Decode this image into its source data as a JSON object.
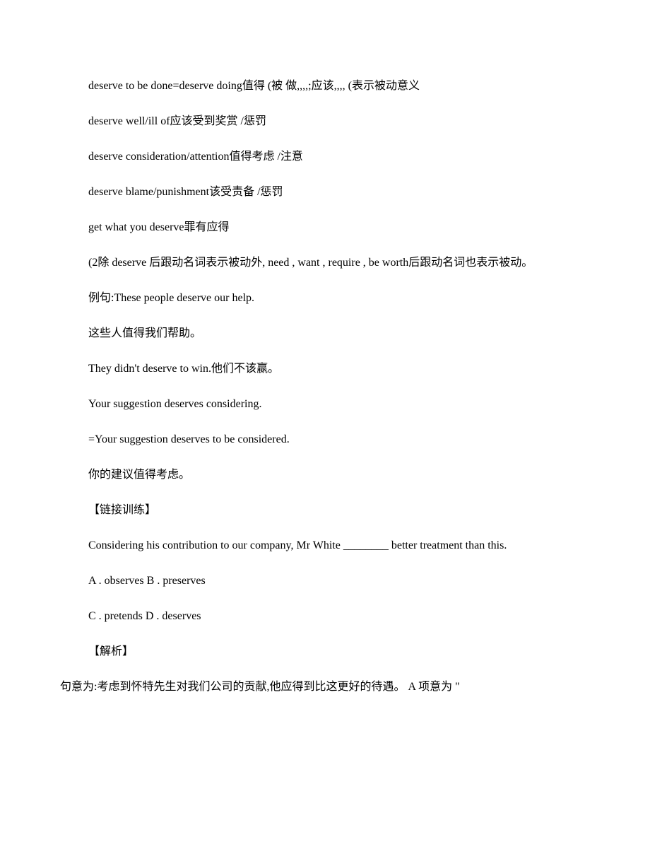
{
  "lines": {
    "l1": "deserve to be done=deserve doing值得 (被 做,,,,;应该,,,, (表示被动意义",
    "l2": "deserve well/ill of应该受到奖赏 /惩罚",
    "l3": "deserve consideration/attention值得考虑 /注意",
    "l4": "deserve blame/punishment该受责备 /惩罚",
    "l5": "get what you deserve罪有应得",
    "l6": "(2除 deserve 后跟动名词表示被动外, need , want , require , be worth后跟动名词也表示被动。",
    "l7": "例句:These people deserve our help.",
    "l8": "这些人值得我们帮助。",
    "l9": "They didn't deserve to win.他们不该赢。",
    "l10": "Your suggestion deserves considering.",
    "l11": "=Your suggestion deserves to be considered.",
    "l12": "你的建议值得考虑。",
    "l13": "【链接训练】",
    "l14": "Considering his contribution to our company, Mr White ________ better treatment than this.",
    "l15": "A . observes B . preserves",
    "l16": "C . pretends D . deserves",
    "l17": "【解析】",
    "l18": "句意为:考虑到怀特先生对我们公司的贡献,他应得到比这更好的待遇。 A 项意为 \""
  }
}
